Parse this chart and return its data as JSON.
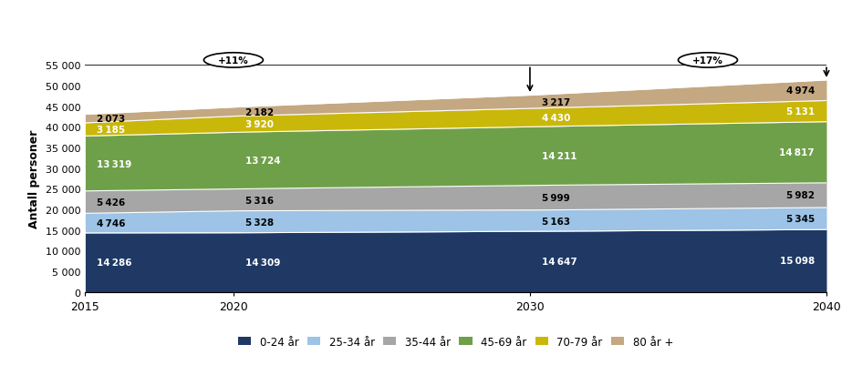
{
  "years": [
    2015,
    2020,
    2030,
    2040
  ],
  "series": {
    "0-24 år": [
      14286,
      14309,
      14647,
      15098
    ],
    "25-34 år": [
      4746,
      5328,
      5163,
      5345
    ],
    "35-44 år": [
      5426,
      5316,
      5999,
      5982
    ],
    "45-69 år": [
      13319,
      13724,
      14211,
      14817
    ],
    "70-79 år": [
      3185,
      3920,
      4430,
      5131
    ],
    "80 år +": [
      2073,
      2182,
      3217,
      4974
    ]
  },
  "colors": {
    "0-24 år": "#1f3864",
    "25-34 år": "#9dc3e6",
    "35-44 år": "#a6a6a6",
    "45-69 år": "#6ea04a",
    "70-79 år": "#c9b80a",
    "80 år +": "#c4a882"
  },
  "ylabel": "Antall personer",
  "ylim": [
    0,
    55000
  ],
  "yticks": [
    0,
    5000,
    10000,
    15000,
    20000,
    25000,
    30000,
    35000,
    40000,
    45000,
    50000,
    55000
  ],
  "ytick_labels": [
    "0",
    "5 000",
    "10 000",
    "15 000",
    "20 000",
    "25 000",
    "30 000",
    "35 000",
    "40 000",
    "45 000",
    "50 000",
    "55 000"
  ],
  "xticks": [
    2015,
    2020,
    2030,
    2040
  ],
  "bg_color": "#ffffff",
  "label_colors": {
    "0-24 år": "white",
    "25-34 år": "black",
    "35-44 år": "black",
    "45-69 år": "white",
    "70-79 år": "white",
    "80 år +": "black"
  }
}
